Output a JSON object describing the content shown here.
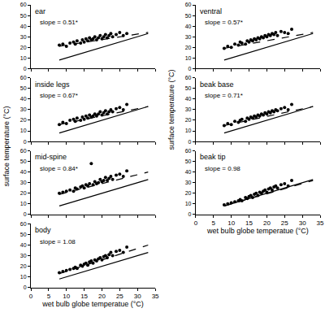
{
  "chart_data": [
    {
      "type": "scatter",
      "title": "ear",
      "annotation": "slope = 0.51*",
      "color": "#000000",
      "marker": "circle",
      "tick_labels": "y",
      "x": [
        8,
        9,
        10,
        11,
        12,
        12.5,
        13,
        14,
        14.5,
        15,
        15.5,
        16,
        16.5,
        17,
        17.5,
        18,
        18.5,
        19,
        19.5,
        20,
        20.5,
        21,
        21.5,
        22,
        22.5,
        23,
        24,
        25,
        26,
        27
      ],
      "y": [
        22,
        23,
        21,
        24,
        25,
        23,
        26,
        24,
        27,
        25,
        28,
        26,
        29,
        27,
        28,
        30,
        27,
        29,
        31,
        28,
        30,
        32,
        29,
        31,
        33,
        30,
        32,
        34,
        31,
        33
      ],
      "fit": {
        "x": [
          8,
          33
        ],
        "y": [
          21,
          34
        ],
        "line_style": "dashed"
      },
      "identity": {
        "x": [
          8,
          33
        ],
        "y": [
          8,
          33
        ],
        "line_style": "solid"
      },
      "y_label": "surface temperature (°C)",
      "xlim": [
        0,
        35
      ],
      "xticks": [
        0,
        5,
        10,
        15,
        20,
        25,
        30,
        35
      ],
      "ylim": [
        0,
        60
      ],
      "yticks": [
        0,
        10,
        20,
        30,
        40,
        50,
        60
      ]
    },
    {
      "type": "scatter",
      "title": "inside legs",
      "annotation": "slope = 0.67*",
      "color": "#000000",
      "marker": "circle",
      "tick_labels": "y",
      "x": [
        8,
        9,
        10,
        11,
        12,
        12.5,
        13,
        14,
        14.5,
        15,
        15.5,
        16,
        16.5,
        17,
        17.5,
        18,
        18.5,
        19,
        19.5,
        20,
        20.5,
        21,
        21.5,
        22,
        22.5,
        23,
        24,
        25,
        26,
        27
      ],
      "y": [
        16,
        18,
        17,
        20,
        21,
        19,
        22,
        20,
        23,
        21,
        24,
        22,
        25,
        23,
        24,
        26,
        24,
        26,
        28,
        25,
        27,
        29,
        26,
        28,
        30,
        28,
        31,
        32,
        30,
        35
      ],
      "fit": {
        "x": [
          8,
          33
        ],
        "y": [
          16,
          33
        ],
        "line_style": "dashed"
      },
      "identity": {
        "x": [
          8,
          33
        ],
        "y": [
          8,
          33
        ],
        "line_style": "solid"
      },
      "xlim": [
        0,
        35
      ],
      "xticks": [
        0,
        5,
        10,
        15,
        20,
        25,
        30,
        35
      ],
      "ylim": [
        0,
        60
      ],
      "yticks": [
        0,
        10,
        20,
        30,
        40,
        50,
        60
      ]
    },
    {
      "type": "scatter",
      "title": "mid-spine",
      "annotation": "slope = 0.84*",
      "color": "#000000",
      "marker": "circle",
      "tick_labels": "y",
      "x": [
        8,
        9,
        10,
        11,
        12,
        12.5,
        13,
        14,
        14.5,
        15,
        15.5,
        16,
        16.5,
        17,
        17.5,
        18,
        18.5,
        19,
        19.5,
        20,
        20.5,
        21,
        21.5,
        22,
        22.5,
        23,
        24,
        25,
        26,
        27
      ],
      "y": [
        20,
        21,
        22,
        23,
        22,
        25,
        24,
        26,
        27,
        25,
        28,
        27,
        29,
        48,
        28,
        31,
        29,
        30,
        33,
        31,
        32,
        35,
        32,
        34,
        36,
        33,
        37,
        38,
        36,
        41
      ],
      "fit": {
        "x": [
          8,
          33
        ],
        "y": [
          19,
          40
        ],
        "line_style": "dashed"
      },
      "identity": {
        "x": [
          8,
          33
        ],
        "y": [
          8,
          33
        ],
        "line_style": "solid"
      },
      "xlim": [
        0,
        35
      ],
      "xticks": [
        0,
        5,
        10,
        15,
        20,
        25,
        30,
        35
      ],
      "ylim": [
        0,
        60
      ],
      "yticks": [
        0,
        10,
        20,
        30,
        40,
        50,
        60
      ]
    },
    {
      "type": "scatter",
      "title": "body",
      "annotation": "slope = 1.08",
      "color": "#000000",
      "marker": "circle",
      "x": [
        8,
        9,
        10,
        11,
        12,
        12.5,
        13,
        14,
        14.5,
        15,
        15.5,
        16,
        16.5,
        17,
        17.5,
        18,
        18.5,
        19,
        19.5,
        20,
        20.5,
        21,
        21.5,
        22,
        22.5,
        23,
        24,
        25,
        26,
        27
      ],
      "y": [
        14,
        15,
        16,
        17,
        18,
        19,
        18,
        21,
        20,
        22,
        23,
        21,
        24,
        25,
        23,
        26,
        25,
        27,
        28,
        26,
        29,
        30,
        28,
        31,
        33,
        30,
        34,
        35,
        33,
        38
      ],
      "fit": {
        "x": [
          8,
          33
        ],
        "y": [
          13,
          40
        ],
        "line_style": "dashed"
      },
      "identity": {
        "x": [
          8,
          33
        ],
        "y": [
          8,
          33
        ],
        "line_style": "solid"
      },
      "x_label": "wet bulb globe temperatue (°C)",
      "xlim": [
        0,
        35
      ],
      "xticks": [
        0,
        5,
        10,
        15,
        20,
        25,
        30,
        35
      ],
      "ylim": [
        0,
        60
      ],
      "yticks": [
        0,
        10,
        20,
        30,
        40,
        50,
        60
      ]
    },
    {
      "type": "scatter",
      "title": "ventral",
      "annotation": "slope = 0.57*",
      "color": "#000000",
      "marker": "circle",
      "tick_labels": "y",
      "x": [
        8,
        9,
        10,
        11,
        12,
        12.5,
        13,
        14,
        14.5,
        15,
        15.5,
        16,
        16.5,
        17,
        17.5,
        18,
        18.5,
        19,
        19.5,
        20,
        20.5,
        21,
        21.5,
        22,
        22.5,
        23,
        24,
        25,
        26,
        27
      ],
      "y": [
        19,
        21,
        20,
        23,
        22,
        25,
        24,
        23,
        26,
        25,
        27,
        26,
        28,
        27,
        29,
        28,
        30,
        29,
        31,
        30,
        32,
        31,
        33,
        32,
        34,
        31,
        35,
        34,
        33,
        37
      ],
      "fit": {
        "x": [
          8,
          33
        ],
        "y": [
          19,
          34
        ],
        "line_style": "dashed"
      },
      "identity": {
        "x": [
          8,
          33
        ],
        "y": [
          8,
          33
        ],
        "line_style": "solid"
      },
      "y_label": "surface temperature (°C)",
      "xlim": [
        0,
        35
      ],
      "xticks": [
        0,
        5,
        10,
        15,
        20,
        25,
        30,
        35
      ],
      "ylim": [
        0,
        60
      ],
      "yticks": [
        0,
        10,
        20,
        30,
        40,
        50,
        60
      ]
    },
    {
      "type": "scatter",
      "title": "beak base",
      "annotation": "slope = 0.71*",
      "color": "#000000",
      "marker": "circle",
      "tick_labels": "y",
      "x": [
        8,
        9,
        10,
        11,
        12,
        12.5,
        13,
        14,
        14.5,
        15,
        15.5,
        16,
        16.5,
        17,
        17.5,
        18,
        18.5,
        19,
        19.5,
        20,
        20.5,
        21,
        21.5,
        22,
        22.5,
        23,
        24,
        25,
        26,
        27
      ],
      "y": [
        15,
        17,
        16,
        19,
        18,
        20,
        21,
        19,
        22,
        21,
        23,
        22,
        24,
        23,
        25,
        24,
        26,
        25,
        27,
        26,
        28,
        27,
        29,
        28,
        30,
        29,
        31,
        32,
        30,
        35
      ],
      "fit": {
        "x": [
          8,
          33
        ],
        "y": [
          15,
          33
        ],
        "line_style": "dashed"
      },
      "identity": {
        "x": [
          8,
          33
        ],
        "y": [
          8,
          33
        ],
        "line_style": "solid"
      },
      "xlim": [
        0,
        35
      ],
      "xticks": [
        0,
        5,
        10,
        15,
        20,
        25,
        30,
        35
      ],
      "ylim": [
        0,
        60
      ],
      "yticks": [
        0,
        10,
        20,
        30,
        40,
        50,
        60
      ]
    },
    {
      "type": "scatter",
      "title": "beak tip",
      "annotation": "slope = 0.98",
      "color": "#000000",
      "marker": "circle",
      "x": [
        8,
        9,
        10,
        11,
        12,
        12.5,
        13,
        14,
        14.5,
        15,
        15.5,
        16,
        16.5,
        17,
        17.5,
        18,
        18.5,
        19,
        19.5,
        20,
        20.5,
        21,
        21.5,
        22,
        22.5,
        23,
        24,
        25,
        26,
        27
      ],
      "y": [
        9,
        10,
        11,
        12,
        13,
        14,
        13,
        16,
        15,
        17,
        18,
        16,
        19,
        20,
        18,
        21,
        20,
        22,
        23,
        21,
        24,
        25,
        23,
        26,
        27,
        25,
        28,
        29,
        27,
        32
      ],
      "fit": {
        "x": [
          8,
          33
        ],
        "y": [
          8,
          32
        ],
        "line_style": "dashed"
      },
      "identity": {
        "x": [
          8,
          33
        ],
        "y": [
          8,
          33
        ],
        "line_style": "solid"
      },
      "x_label": "wet bulb globe temperatue (°C)",
      "xlim": [
        0,
        35
      ],
      "xticks": [
        0,
        5,
        10,
        15,
        20,
        25,
        30,
        35
      ],
      "ylim": [
        0,
        60
      ],
      "yticks": [
        0,
        10,
        20,
        30,
        40,
        50,
        60
      ]
    }
  ]
}
